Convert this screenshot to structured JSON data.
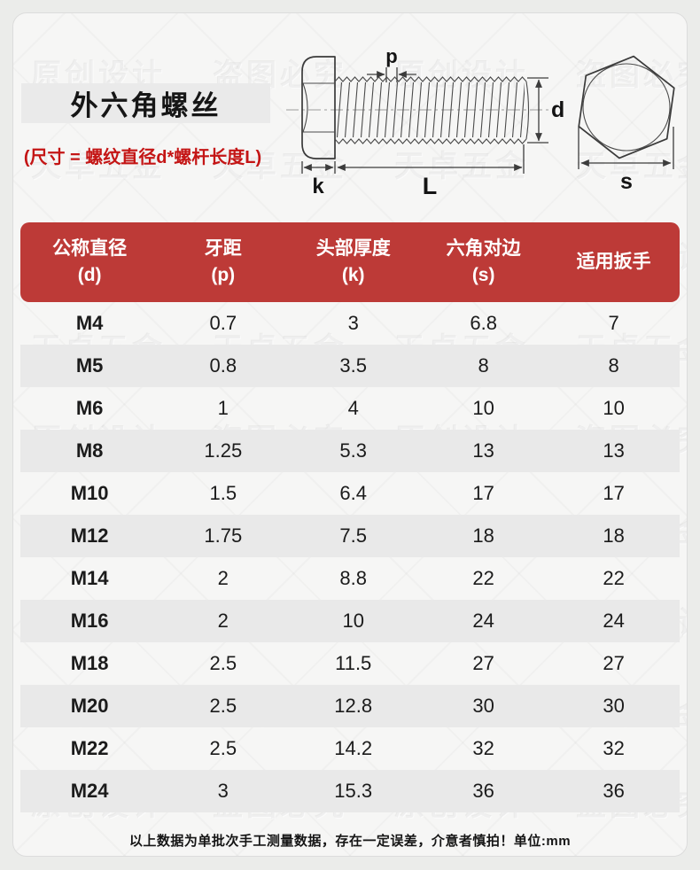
{
  "header": {
    "title": "外六角螺丝",
    "size_note": "(尺寸 = 螺纹直径d*螺杆长度L)"
  },
  "diagram": {
    "labels": {
      "pitch": "p",
      "diameter": "d",
      "head_thickness": "k",
      "length": "L",
      "across_flats": "s"
    }
  },
  "table": {
    "columns": [
      {
        "title": "公称直径",
        "sub": "(d)"
      },
      {
        "title": "牙距",
        "sub": "(p)"
      },
      {
        "title": "头部厚度",
        "sub": "(k)"
      },
      {
        "title": "六角对边",
        "sub": "(s)"
      },
      {
        "title": "适用扳手",
        "sub": ""
      }
    ],
    "rows": [
      [
        "M4",
        "0.7",
        "3",
        "6.8",
        "7"
      ],
      [
        "M5",
        "0.8",
        "3.5",
        "8",
        "8"
      ],
      [
        "M6",
        "1",
        "4",
        "10",
        "10"
      ],
      [
        "M8",
        "1.25",
        "5.3",
        "13",
        "13"
      ],
      [
        "M10",
        "1.5",
        "6.4",
        "17",
        "17"
      ],
      [
        "M12",
        "1.75",
        "7.5",
        "18",
        "18"
      ],
      [
        "M14",
        "2",
        "8.8",
        "22",
        "22"
      ],
      [
        "M16",
        "2",
        "10",
        "24",
        "24"
      ],
      [
        "M18",
        "2.5",
        "11.5",
        "27",
        "27"
      ],
      [
        "M20",
        "2.5",
        "12.8",
        "30",
        "30"
      ],
      [
        "M22",
        "2.5",
        "14.2",
        "32",
        "32"
      ],
      [
        "M24",
        "3",
        "15.3",
        "36",
        "36"
      ]
    ]
  },
  "footer": {
    "note": "以上数据为单批次手工测量数据，存在一定误差，介意者慎拍！单位:mm"
  },
  "watermark": {
    "phrases": [
      "天卓五金",
      "原创设计",
      "盗图必究"
    ]
  },
  "colors": {
    "header_red": "#bd3a37",
    "row_alt": "#e9e9e9",
    "note_red": "#c41515"
  }
}
